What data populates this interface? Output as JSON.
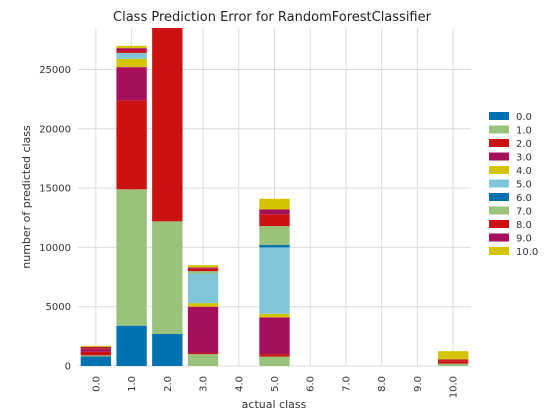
{
  "chart_data": {
    "type": "bar",
    "stacked": true,
    "title": "Class Prediction Error for RandomForestClassifier",
    "xlabel": "actual class",
    "ylabel": "number of predicted class",
    "categories": [
      "0.0",
      "1.0",
      "2.0",
      "3.0",
      "4.0",
      "5.0",
      "6.0",
      "7.0",
      "8.0",
      "9.0",
      "10.0"
    ],
    "ylim": [
      0,
      28500
    ],
    "yticks": [
      0,
      5000,
      10000,
      15000,
      20000,
      25000
    ],
    "grid": true,
    "legend_position": "right",
    "series": [
      {
        "name": "0.0",
        "color": "#0072b2",
        "values": [
          800,
          3400,
          2700,
          0,
          0,
          0,
          0,
          0,
          0,
          0,
          0
        ]
      },
      {
        "name": "1.0",
        "color": "#9bc27a",
        "values": [
          100,
          11500,
          9500,
          1000,
          0,
          800,
          0,
          0,
          0,
          0,
          200
        ]
      },
      {
        "name": "2.0",
        "color": "#cc1111",
        "values": [
          300,
          7500,
          16300,
          100,
          0,
          200,
          0,
          0,
          0,
          0,
          150
        ]
      },
      {
        "name": "3.0",
        "color": "#a50f5c",
        "values": [
          200,
          2800,
          0,
          3900,
          0,
          3100,
          0,
          0,
          0,
          0,
          0
        ]
      },
      {
        "name": "4.0",
        "color": "#d4c300",
        "values": [
          0,
          700,
          0,
          300,
          0,
          300,
          0,
          0,
          0,
          0,
          0
        ]
      },
      {
        "name": "5.0",
        "color": "#80c5d8",
        "values": [
          0,
          500,
          0,
          2500,
          0,
          5600,
          0,
          0,
          0,
          0,
          0
        ]
      },
      {
        "name": "6.0",
        "color": "#0072b2",
        "values": [
          0,
          0,
          0,
          0,
          0,
          200,
          0,
          0,
          0,
          0,
          0
        ]
      },
      {
        "name": "7.0",
        "color": "#9bc27a",
        "values": [
          0,
          0,
          0,
          200,
          0,
          1600,
          0,
          0,
          0,
          0,
          0
        ]
      },
      {
        "name": "8.0",
        "color": "#cc1111",
        "values": [
          100,
          200,
          0,
          200,
          0,
          1000,
          0,
          0,
          0,
          0,
          150
        ]
      },
      {
        "name": "9.0",
        "color": "#a50f5c",
        "values": [
          100,
          200,
          0,
          100,
          0,
          400,
          0,
          0,
          0,
          0,
          50
        ]
      },
      {
        "name": "10.0",
        "color": "#d4c300",
        "values": [
          100,
          200,
          0,
          200,
          0,
          900,
          0,
          0,
          0,
          0,
          700
        ]
      }
    ]
  }
}
